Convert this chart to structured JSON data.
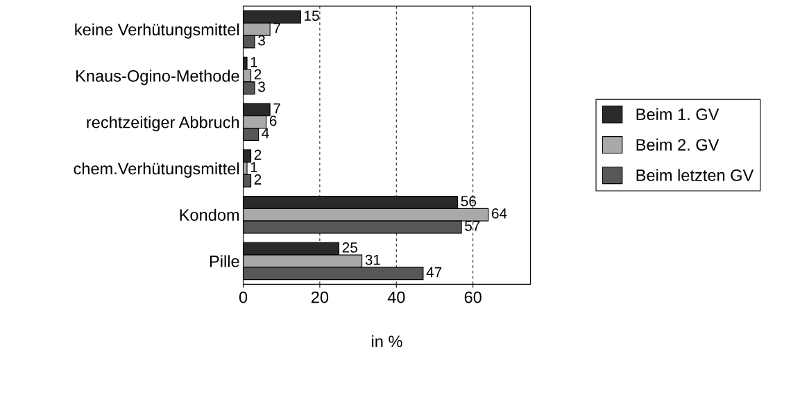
{
  "chart_data": {
    "type": "bar",
    "orientation": "horizontal",
    "xlabel": "in %",
    "categories": [
      "keine Verhütungsmittel",
      "Knaus-Ogino-Methode",
      "rechtzeitiger Abbruch",
      "chem.Verhütungsmittel",
      "Kondom",
      "Pille"
    ],
    "series": [
      {
        "name": "Beim 1. GV",
        "color": "#2a2a2a",
        "values": [
          15,
          1,
          7,
          2,
          56,
          25
        ]
      },
      {
        "name": "Beim 2. GV",
        "color": "#a9a9a9",
        "values": [
          7,
          2,
          6,
          1,
          64,
          31
        ]
      },
      {
        "name": "Beim letzten GV",
        "color": "#575757",
        "values": [
          3,
          3,
          4,
          2,
          57,
          47
        ]
      }
    ],
    "xlim": [
      0,
      75
    ],
    "xticks": [
      0,
      20,
      40,
      60
    ],
    "grid": "x",
    "legend": "right",
    "data_labels": true
  }
}
